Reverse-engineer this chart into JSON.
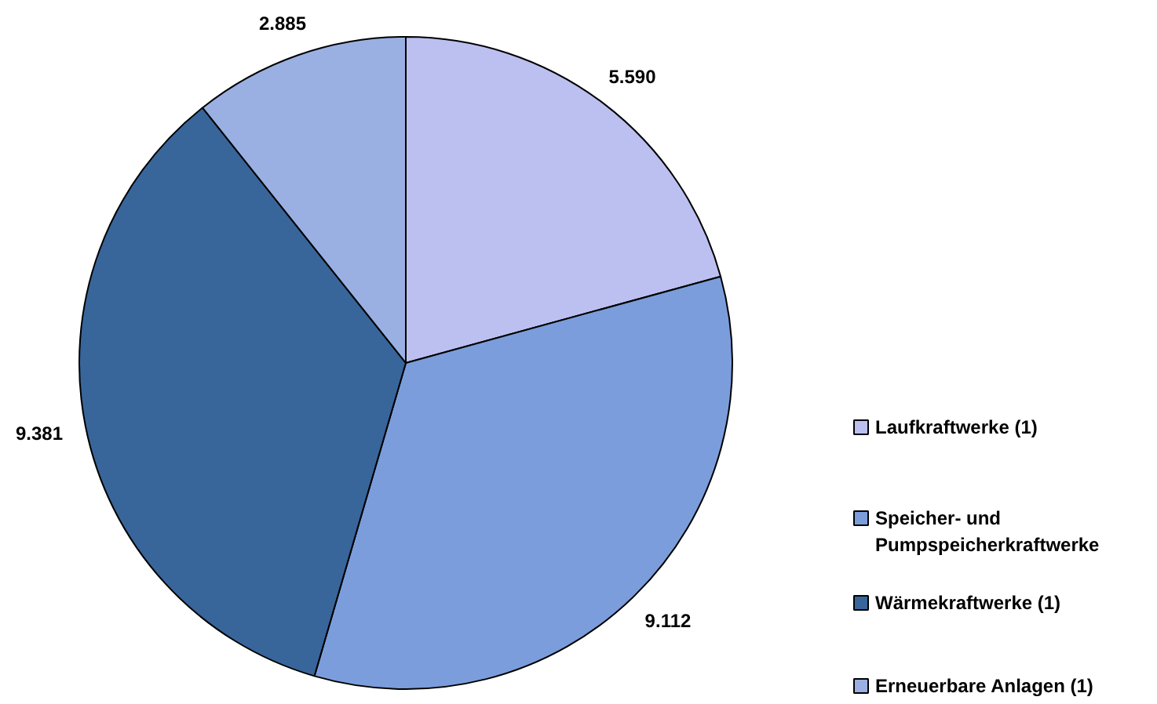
{
  "chart_data": {
    "type": "pie",
    "categories": [
      "Laufkraftwerke (1)",
      "Speicher- und\nPumpspeicherkraftwerke",
      "Wärmekraftwerke (1)",
      "Erneuerbare Anlagen (1)"
    ],
    "values": [
      5590,
      9112,
      9381,
      2885
    ],
    "colors": [
      "#bcc0f0",
      "#7b9ddb",
      "#38669b",
      "#9ab0e2"
    ],
    "value_labels": [
      "5.590",
      "9.112",
      "9.381",
      "2.885"
    ],
    "legend": "right"
  }
}
